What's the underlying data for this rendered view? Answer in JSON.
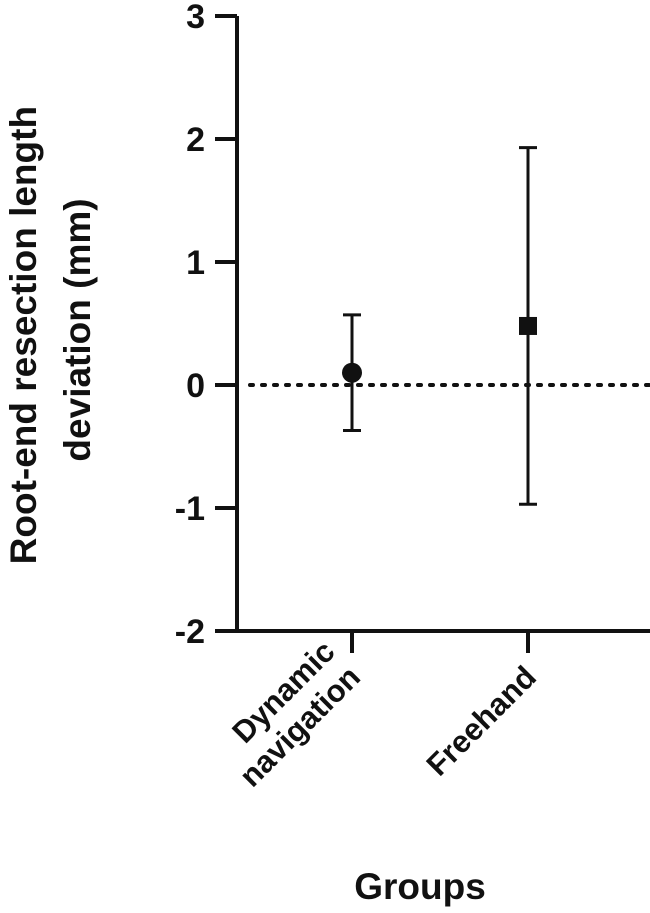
{
  "chart_data": {
    "type": "scatter",
    "title": "",
    "ylabel_lines": [
      "Root-end resection length",
      "deviation (mm)"
    ],
    "xlabel": "Groups",
    "ylim": [
      -2,
      3
    ],
    "yticks": [
      3,
      2,
      1,
      0,
      -1,
      -2
    ],
    "reference_line": {
      "y": 0,
      "style": "dotted"
    },
    "categories": [
      {
        "lines": [
          "Dynamic",
          "navigation"
        ]
      },
      {
        "lines": [
          "Freehand"
        ]
      }
    ],
    "series": [
      {
        "category_index": 0,
        "marker": "circle",
        "mean": 0.1,
        "error_low": -0.37,
        "error_high": 0.57
      },
      {
        "category_index": 1,
        "marker": "square",
        "mean": 0.48,
        "error_low": -0.97,
        "error_high": 1.93
      }
    ],
    "colors": {
      "ink": "#111111",
      "background": "#ffffff"
    }
  }
}
